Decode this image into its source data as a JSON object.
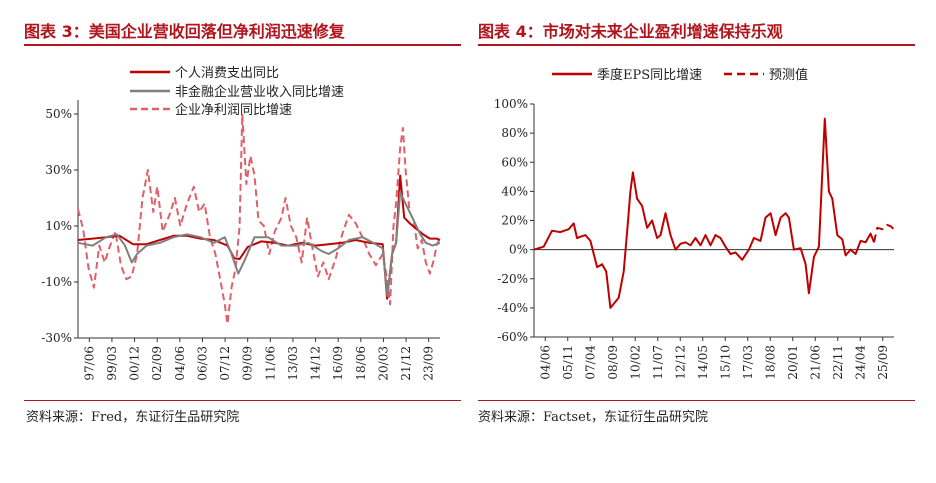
{
  "left": {
    "title": "图表 3：美国企业营收回落但净利润迅速修复",
    "source": "资料来源：Fred，东证衍生品研究院"
  },
  "right": {
    "title": "图表 4：市场对未来企业盈利增速保持乐观",
    "source": "资料来源：Factset，东证衍生品研究院"
  },
  "chart_data": [
    {
      "type": "line",
      "ylim": [
        -30,
        55
      ],
      "yticks": [
        50,
        30,
        10,
        -10,
        -30
      ],
      "ytick_labels": [
        "50%",
        "30%",
        "10%",
        "-10%",
        "-30%"
      ],
      "x_start": 1997.42,
      "x_end": 2024.25,
      "xticks": [
        "97/06",
        "99/03",
        "00/12",
        "02/09",
        "04/06",
        "06/03",
        "07/12",
        "09/09",
        "11/06",
        "13/03",
        "14/12",
        "16/09",
        "18/06",
        "20/03",
        "21/12",
        "23/09"
      ],
      "legend_position": "top-left",
      "colors": {
        "consumption": "#c00000",
        "revenue": "#808080",
        "profit": "#e0606a"
      },
      "series": [
        {
          "name": "个人消费支出同比",
          "style": "solid",
          "points": [
            [
              1997.42,
              5
            ],
            [
              1998.5,
              5.5
            ],
            [
              1999.5,
              6
            ],
            [
              2000.5,
              6.5
            ],
            [
              2001.5,
              3.5
            ],
            [
              2002.5,
              3.5
            ],
            [
              2003.5,
              5
            ],
            [
              2004.5,
              6.5
            ],
            [
              2005.5,
              6.5
            ],
            [
              2006.5,
              5.5
            ],
            [
              2007.5,
              5
            ],
            [
              2008.0,
              4
            ],
            [
              2008.5,
              3
            ],
            [
              2009.0,
              -1.5
            ],
            [
              2009.4,
              -1.8
            ],
            [
              2010.0,
              2.5
            ],
            [
              2011.0,
              4.5
            ],
            [
              2012.0,
              4
            ],
            [
              2013.0,
              3
            ],
            [
              2014.0,
              4
            ],
            [
              2015.0,
              3
            ],
            [
              2016.0,
              3.5
            ],
            [
              2017.0,
              4
            ],
            [
              2018.0,
              5
            ],
            [
              2019.0,
              4
            ],
            [
              2020.0,
              3.5
            ],
            [
              2020.33,
              -16
            ],
            [
              2020.7,
              0
            ],
            [
              2021.0,
              4
            ],
            [
              2021.3,
              28
            ],
            [
              2021.6,
              13
            ],
            [
              2022.0,
              11
            ],
            [
              2022.5,
              9
            ],
            [
              2023.0,
              7
            ],
            [
              2023.5,
              5.5
            ],
            [
              2024.0,
              5.5
            ],
            [
              2024.25,
              5
            ]
          ]
        },
        {
          "name": "非金融企业营业收入同比增速",
          "style": "solid",
          "points": [
            [
              1997.42,
              4
            ],
            [
              1998.5,
              3
            ],
            [
              1999.5,
              6
            ],
            [
              2000.3,
              7
            ],
            [
              2000.9,
              3
            ],
            [
              2001.4,
              -3
            ],
            [
              2001.8,
              0
            ],
            [
              2002.5,
              3
            ],
            [
              2003.5,
              4
            ],
            [
              2004.5,
              6
            ],
            [
              2005.5,
              7
            ],
            [
              2006.5,
              6
            ],
            [
              2007.5,
              4
            ],
            [
              2008.3,
              6
            ],
            [
              2008.8,
              0
            ],
            [
              2009.3,
              -7
            ],
            [
              2009.8,
              -2
            ],
            [
              2010.5,
              6
            ],
            [
              2011.5,
              6
            ],
            [
              2012.5,
              3
            ],
            [
              2013.5,
              3
            ],
            [
              2014.5,
              4
            ],
            [
              2015.5,
              1
            ],
            [
              2016.0,
              0
            ],
            [
              2016.7,
              2
            ],
            [
              2017.5,
              5
            ],
            [
              2018.5,
              6
            ],
            [
              2019.3,
              4
            ],
            [
              2020.0,
              2
            ],
            [
              2020.35,
              -15
            ],
            [
              2020.7,
              0
            ],
            [
              2021.0,
              4
            ],
            [
              2021.3,
              22
            ],
            [
              2021.8,
              17
            ],
            [
              2022.3,
              12
            ],
            [
              2022.8,
              7
            ],
            [
              2023.2,
              4
            ],
            [
              2023.7,
              3
            ],
            [
              2024.25,
              4
            ]
          ]
        },
        {
          "name": "企业净利润同比增速",
          "style": "dashed",
          "points": [
            [
              1997.42,
              16
            ],
            [
              1997.8,
              9
            ],
            [
              1998.2,
              -5
            ],
            [
              1998.6,
              -12
            ],
            [
              1999.0,
              3
            ],
            [
              1999.4,
              -3
            ],
            [
              1999.8,
              3
            ],
            [
              2000.2,
              8
            ],
            [
              2000.6,
              -4
            ],
            [
              2001.0,
              -9
            ],
            [
              2001.4,
              -8
            ],
            [
              2001.8,
              0
            ],
            [
              2002.2,
              20
            ],
            [
              2002.6,
              30
            ],
            [
              2003.0,
              15
            ],
            [
              2003.3,
              24
            ],
            [
              2003.7,
              8
            ],
            [
              2004.2,
              14
            ],
            [
              2004.6,
              20
            ],
            [
              2005.0,
              10
            ],
            [
              2005.5,
              18
            ],
            [
              2006.0,
              24
            ],
            [
              2006.4,
              15
            ],
            [
              2006.8,
              18
            ],
            [
              2007.2,
              6
            ],
            [
              2007.6,
              0
            ],
            [
              2008.0,
              -10
            ],
            [
              2008.3,
              -18
            ],
            [
              2008.5,
              -25
            ],
            [
              2008.8,
              -12
            ],
            [
              2009.1,
              -5
            ],
            [
              2009.4,
              10
            ],
            [
              2009.6,
              50
            ],
            [
              2009.9,
              25
            ],
            [
              2010.2,
              35
            ],
            [
              2010.5,
              28
            ],
            [
              2010.8,
              12
            ],
            [
              2011.2,
              10
            ],
            [
              2011.6,
              0
            ],
            [
              2012.0,
              8
            ],
            [
              2012.5,
              13
            ],
            [
              2012.8,
              20
            ],
            [
              2013.2,
              10
            ],
            [
              2013.6,
              6
            ],
            [
              2014.0,
              -3
            ],
            [
              2014.4,
              13
            ],
            [
              2014.8,
              2
            ],
            [
              2015.2,
              -8
            ],
            [
              2015.6,
              -3
            ],
            [
              2016.0,
              -9
            ],
            [
              2016.5,
              -2
            ],
            [
              2017.0,
              7
            ],
            [
              2017.5,
              14
            ],
            [
              2018.0,
              11
            ],
            [
              2018.5,
              6
            ],
            [
              2019.0,
              0
            ],
            [
              2019.5,
              -4
            ],
            [
              2020.0,
              0
            ],
            [
              2020.3,
              -8
            ],
            [
              2020.55,
              -18
            ],
            [
              2020.8,
              10
            ],
            [
              2021.0,
              18
            ],
            [
              2021.3,
              38
            ],
            [
              2021.5,
              45
            ],
            [
              2021.7,
              30
            ],
            [
              2022.0,
              15
            ],
            [
              2022.3,
              12
            ],
            [
              2022.6,
              2
            ],
            [
              2022.9,
              5
            ],
            [
              2023.2,
              -3
            ],
            [
              2023.5,
              -7
            ],
            [
              2023.8,
              -2
            ],
            [
              2024.0,
              3
            ],
            [
              2024.25,
              6
            ]
          ]
        }
      ]
    },
    {
      "type": "line",
      "ylim": [
        -60,
        100
      ],
      "yticks": [
        100,
        80,
        60,
        40,
        20,
        0,
        -20,
        -40,
        -60
      ],
      "ytick_labels": [
        "100%",
        "80%",
        "60%",
        "40%",
        "20%",
        "0%",
        "-20%",
        "-40%",
        "-60%"
      ],
      "x_start": 2004.42,
      "x_end": 2026.0,
      "xticks": [
        "04/06",
        "05/11",
        "07/04",
        "08/09",
        "10/02",
        "11/07",
        "12/12",
        "14/05",
        "15/10",
        "17/03",
        "18/08",
        "20/01",
        "21/06",
        "22/11",
        "24/04",
        "25/09"
      ],
      "legend_position": "top",
      "colors": {
        "eps": "#c00000",
        "forecast": "#c00000"
      },
      "series": [
        {
          "name": "季度EPS同比增速",
          "style": "solid",
          "points": [
            [
              2004.42,
              0
            ],
            [
              2005.0,
              2
            ],
            [
              2005.5,
              13
            ],
            [
              2006.0,
              12
            ],
            [
              2006.5,
              14
            ],
            [
              2006.8,
              18
            ],
            [
              2007.0,
              8
            ],
            [
              2007.5,
              10
            ],
            [
              2007.8,
              6
            ],
            [
              2008.2,
              -12
            ],
            [
              2008.5,
              -10
            ],
            [
              2008.75,
              -15
            ],
            [
              2009.0,
              -40
            ],
            [
              2009.5,
              -33
            ],
            [
              2009.8,
              -15
            ],
            [
              2010.0,
              12
            ],
            [
              2010.2,
              40
            ],
            [
              2010.35,
              53
            ],
            [
              2010.6,
              35
            ],
            [
              2010.9,
              30
            ],
            [
              2011.2,
              15
            ],
            [
              2011.5,
              20
            ],
            [
              2011.8,
              8
            ],
            [
              2012.0,
              10
            ],
            [
              2012.3,
              25
            ],
            [
              2012.6,
              10
            ],
            [
              2012.9,
              0
            ],
            [
              2013.2,
              4
            ],
            [
              2013.5,
              5
            ],
            [
              2013.8,
              3
            ],
            [
              2014.1,
              8
            ],
            [
              2014.4,
              3
            ],
            [
              2014.7,
              10
            ],
            [
              2015.0,
              3
            ],
            [
              2015.3,
              10
            ],
            [
              2015.6,
              8
            ],
            [
              2015.9,
              2
            ],
            [
              2016.2,
              -3
            ],
            [
              2016.5,
              -2
            ],
            [
              2016.9,
              -7
            ],
            [
              2017.3,
              0
            ],
            [
              2017.6,
              8
            ],
            [
              2018.0,
              6
            ],
            [
              2018.3,
              22
            ],
            [
              2018.6,
              25
            ],
            [
              2018.9,
              10
            ],
            [
              2019.2,
              22
            ],
            [
              2019.5,
              25
            ],
            [
              2019.7,
              22
            ],
            [
              2020.0,
              0
            ],
            [
              2020.4,
              1
            ],
            [
              2020.7,
              -10
            ],
            [
              2020.9,
              -30
            ],
            [
              2021.2,
              -5
            ],
            [
              2021.5,
              2
            ],
            [
              2021.85,
              90
            ],
            [
              2022.1,
              40
            ],
            [
              2022.3,
              35
            ],
            [
              2022.6,
              10
            ],
            [
              2022.9,
              7
            ],
            [
              2023.1,
              -4
            ],
            [
              2023.4,
              0
            ],
            [
              2023.7,
              -3
            ],
            [
              2024.0,
              6
            ],
            [
              2024.3,
              5
            ],
            [
              2024.6,
              11
            ],
            [
              2024.8,
              5
            ]
          ]
        },
        {
          "name": "预测值",
          "style": "dashed",
          "points": [
            [
              2024.8,
              5
            ],
            [
              2025.0,
              15
            ],
            [
              2025.3,
              14
            ],
            [
              2025.6,
              17
            ],
            [
              2025.8,
              16
            ],
            [
              2026.0,
              14
            ]
          ]
        }
      ]
    }
  ]
}
